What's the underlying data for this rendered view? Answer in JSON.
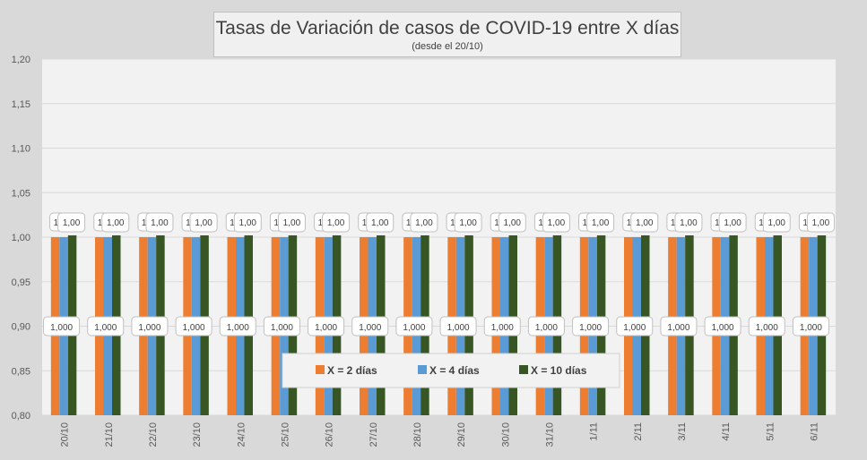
{
  "chart_data": {
    "type": "bar",
    "title": "Tasas de Variación de casos de COVID-19 entre X días",
    "subtitle": "(desde el 20/10)",
    "categories": [
      "20/10",
      "21/10",
      "22/10",
      "23/10",
      "24/10",
      "25/10",
      "26/10",
      "27/10",
      "28/10",
      "29/10",
      "30/10",
      "31/10",
      "1/11",
      "2/11",
      "3/11",
      "4/11",
      "5/11",
      "6/11"
    ],
    "y_ticks": [
      "0,80",
      "0,85",
      "0,90",
      "0,95",
      "1,00",
      "1,05",
      "1,10",
      "1,15",
      "1,20"
    ],
    "ylim": [
      0.8,
      1.2
    ],
    "grid": true,
    "legend_position": "bottom-center",
    "series": [
      {
        "name": "X = 2 días",
        "color": "#ed7d31",
        "values": [
          1,
          1,
          1,
          1,
          1,
          1,
          1,
          1,
          1,
          1,
          1,
          1,
          1,
          1,
          1,
          1,
          1,
          1
        ],
        "data_labels": [
          "1,000",
          "1,000",
          "1,000",
          "1,000",
          "1,000",
          "1,000",
          "1,000",
          "1,000",
          "1,000",
          "1,000",
          "1,000",
          "1,000",
          "1,000",
          "1,000",
          "1,000",
          "1,000",
          "1,000",
          "1,000"
        ]
      },
      {
        "name": "X = 4 días",
        "color": "#5b9bd5",
        "values": [
          1,
          1,
          1,
          1,
          1,
          1,
          1,
          1,
          1,
          1,
          1,
          1,
          1,
          1,
          1,
          1,
          1,
          1
        ],
        "data_labels": [
          "1",
          "1",
          "1",
          "1",
          "1",
          "1",
          "1",
          "1",
          "1",
          "1",
          "1",
          "1",
          "1",
          "1",
          "1",
          "1",
          "1",
          "1"
        ]
      },
      {
        "name": "X = 10 días",
        "color": "#375623",
        "values": [
          1.002,
          1.002,
          1.002,
          1.002,
          1.002,
          1.002,
          1.002,
          1.002,
          1.002,
          1.002,
          1.002,
          1.002,
          1.002,
          1.002,
          1.002,
          1.002,
          1.002,
          1.002
        ],
        "data_labels": [
          "1,00",
          "1,00",
          "1,00",
          "1,00",
          "1,00",
          "1,00",
          "1,00",
          "1,00",
          "1,00",
          "1,00",
          "1,00",
          "1,00",
          "1,00",
          "1,00",
          "1,00",
          "1,00",
          "1,00",
          "1,00"
        ]
      }
    ]
  }
}
